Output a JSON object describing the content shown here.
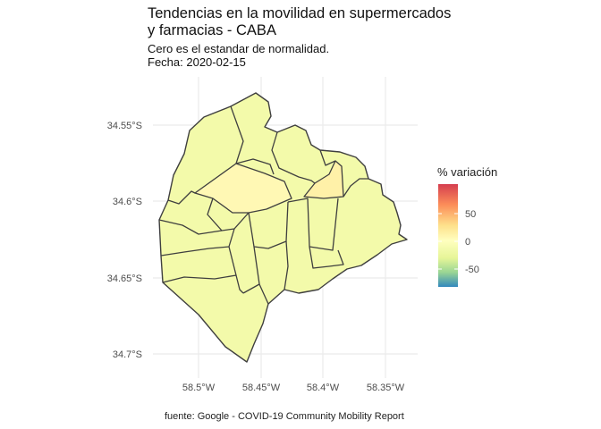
{
  "title": {
    "line1": "Tendencias en la movilidad en supermercados",
    "line2": "y farmacias - CABA"
  },
  "subtitle": {
    "line1": "Cero es el estandar de normalidad.",
    "line2": "Fecha: 2020-02-15"
  },
  "axes": {
    "y_ticks": [
      "34.55°S",
      "34.6°S",
      "34.65°S",
      "34.7°S"
    ],
    "x_ticks": [
      "58.5°W",
      "58.45°W",
      "58.4°W",
      "58.35°W"
    ]
  },
  "legend": {
    "title": "% variación",
    "ticks": [
      "50",
      "0",
      "-50"
    ]
  },
  "caption": "fuente: Google - COVID-19 Community Mobility Report",
  "colors": {
    "fill_default": "#F3FAAA",
    "fill_highlight": "#FFF7B2",
    "border": "#3f3f3f",
    "grid": "#ebebeb"
  }
}
